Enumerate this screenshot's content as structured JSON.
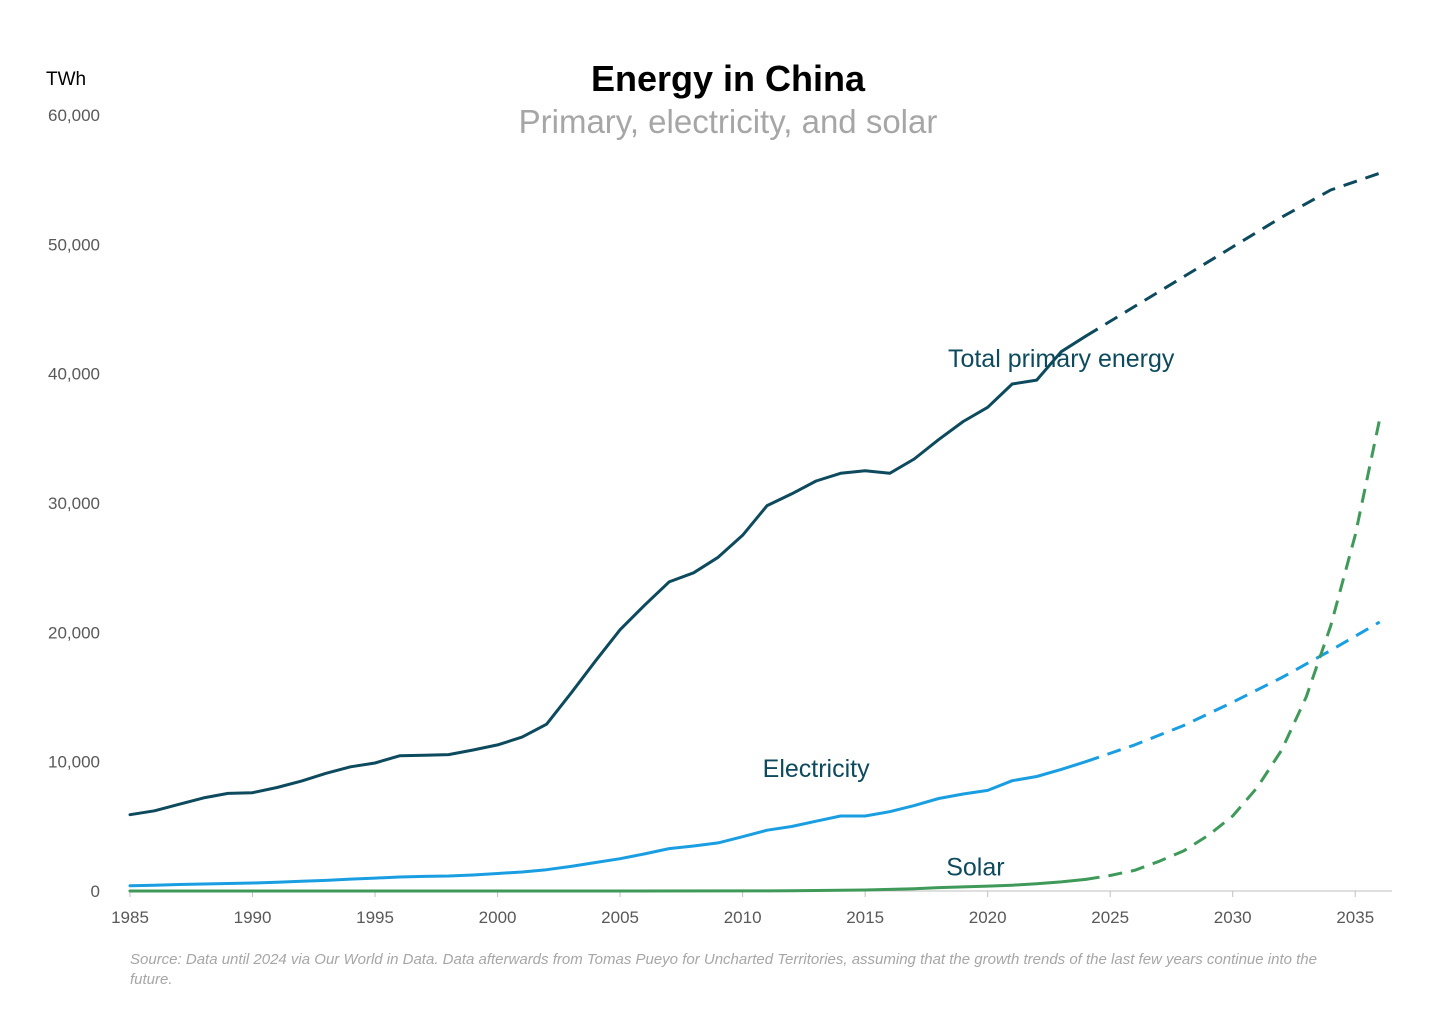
{
  "chart_data": {
    "type": "line",
    "title": "Energy in China",
    "subtitle": "Primary, electricity, and solar",
    "unit_label": "TWh",
    "source": "Source: Data until 2024 via Our World in Data. Data afterwards from Tomas Pueyo for Uncharted Territories, assuming that the growth trends of the last few years continue into the future.",
    "xlim": [
      1985,
      2036.5
    ],
    "ylim": [
      0,
      60000
    ],
    "x_ticks": [
      1985,
      1990,
      1995,
      2000,
      2005,
      2010,
      2015,
      2020,
      2025,
      2030,
      2035
    ],
    "y_ticks": [
      0,
      10000,
      20000,
      30000,
      40000,
      50000,
      60000
    ],
    "y_tick_labels": [
      "0",
      "10,000",
      "20,000",
      "30,000",
      "40,000",
      "50,000",
      "60,000"
    ],
    "grid": false,
    "series": [
      {
        "name": "Total primary energy",
        "color": "#0d4a5e",
        "label_anchor": [
          2023,
          40500
        ],
        "actual": {
          "x": [
            1985,
            1986,
            1987,
            1988,
            1989,
            1990,
            1991,
            1992,
            1993,
            1994,
            1995,
            1996,
            1997,
            1998,
            1999,
            2000,
            2001,
            2002,
            2003,
            2004,
            2005,
            2006,
            2007,
            2008,
            2009,
            2010,
            2011,
            2012,
            2013,
            2014,
            2015,
            2016,
            2017,
            2018,
            2019,
            2020,
            2021,
            2022,
            2023,
            2024
          ],
          "y": [
            5900,
            6200,
            6700,
            7200,
            7550,
            7600,
            8000,
            8500,
            9100,
            9600,
            9900,
            10450,
            10500,
            10550,
            10900,
            11300,
            11900,
            12900,
            15300,
            17800,
            20200,
            22100,
            23900,
            24600,
            25800,
            27500,
            29800,
            30700,
            31700,
            32300,
            32500,
            32300,
            33400,
            34900,
            36300,
            37400,
            39200,
            39500,
            41700,
            42900
          ]
        },
        "projection": {
          "x": [
            2024,
            2026,
            2028,
            2030,
            2032,
            2034,
            2036
          ],
          "y": [
            42900,
            45200,
            47500,
            49800,
            52100,
            54200,
            55500
          ]
        }
      },
      {
        "name": "Electricity",
        "color": "#1a9ee2",
        "label_anchor": [
          2013,
          8800
        ],
        "actual": {
          "x": [
            1985,
            1986,
            1987,
            1988,
            1989,
            1990,
            1991,
            1992,
            1993,
            1994,
            1995,
            1996,
            1997,
            1998,
            1999,
            2000,
            2001,
            2002,
            2003,
            2004,
            2005,
            2006,
            2007,
            2008,
            2009,
            2010,
            2011,
            2012,
            2013,
            2014,
            2015,
            2016,
            2017,
            2018,
            2019,
            2020,
            2021,
            2022,
            2023,
            2024
          ],
          "y": [
            410,
            450,
            500,
            540,
            580,
            620,
            680,
            750,
            820,
            920,
            1000,
            1080,
            1130,
            1160,
            1240,
            1350,
            1470,
            1650,
            1900,
            2200,
            2500,
            2870,
            3280,
            3480,
            3720,
            4200,
            4700,
            4990,
            5400,
            5800,
            5800,
            6130,
            6600,
            7150,
            7500,
            7780,
            8530,
            8850,
            9400,
            10000
          ]
        },
        "projection": {
          "x": [
            2024,
            2026,
            2028,
            2030,
            2032,
            2034,
            2036
          ],
          "y": [
            10000,
            11300,
            12800,
            14600,
            16500,
            18600,
            20800
          ]
        }
      },
      {
        "name": "Solar",
        "color": "#3f9a5a",
        "label_anchor": [
          2019.5,
          1200
        ],
        "actual": {
          "x": [
            1985,
            1990,
            1995,
            2000,
            2005,
            2010,
            2011,
            2012,
            2013,
            2014,
            2015,
            2016,
            2017,
            2018,
            2019,
            2020,
            2021,
            2022,
            2023,
            2024
          ],
          "y": [
            0,
            0,
            0,
            0,
            0,
            5,
            10,
            20,
            40,
            60,
            80,
            120,
            180,
            260,
            320,
            380,
            450,
            560,
            700,
            900
          ]
        },
        "projection": {
          "x": [
            2024,
            2025,
            2026,
            2027,
            2028,
            2029,
            2030,
            2031,
            2032,
            2033,
            2034,
            2035,
            2036
          ],
          "y": [
            900,
            1200,
            1600,
            2300,
            3100,
            4300,
            5800,
            8000,
            10900,
            15000,
            20500,
            27500,
            36500
          ]
        }
      }
    ]
  }
}
